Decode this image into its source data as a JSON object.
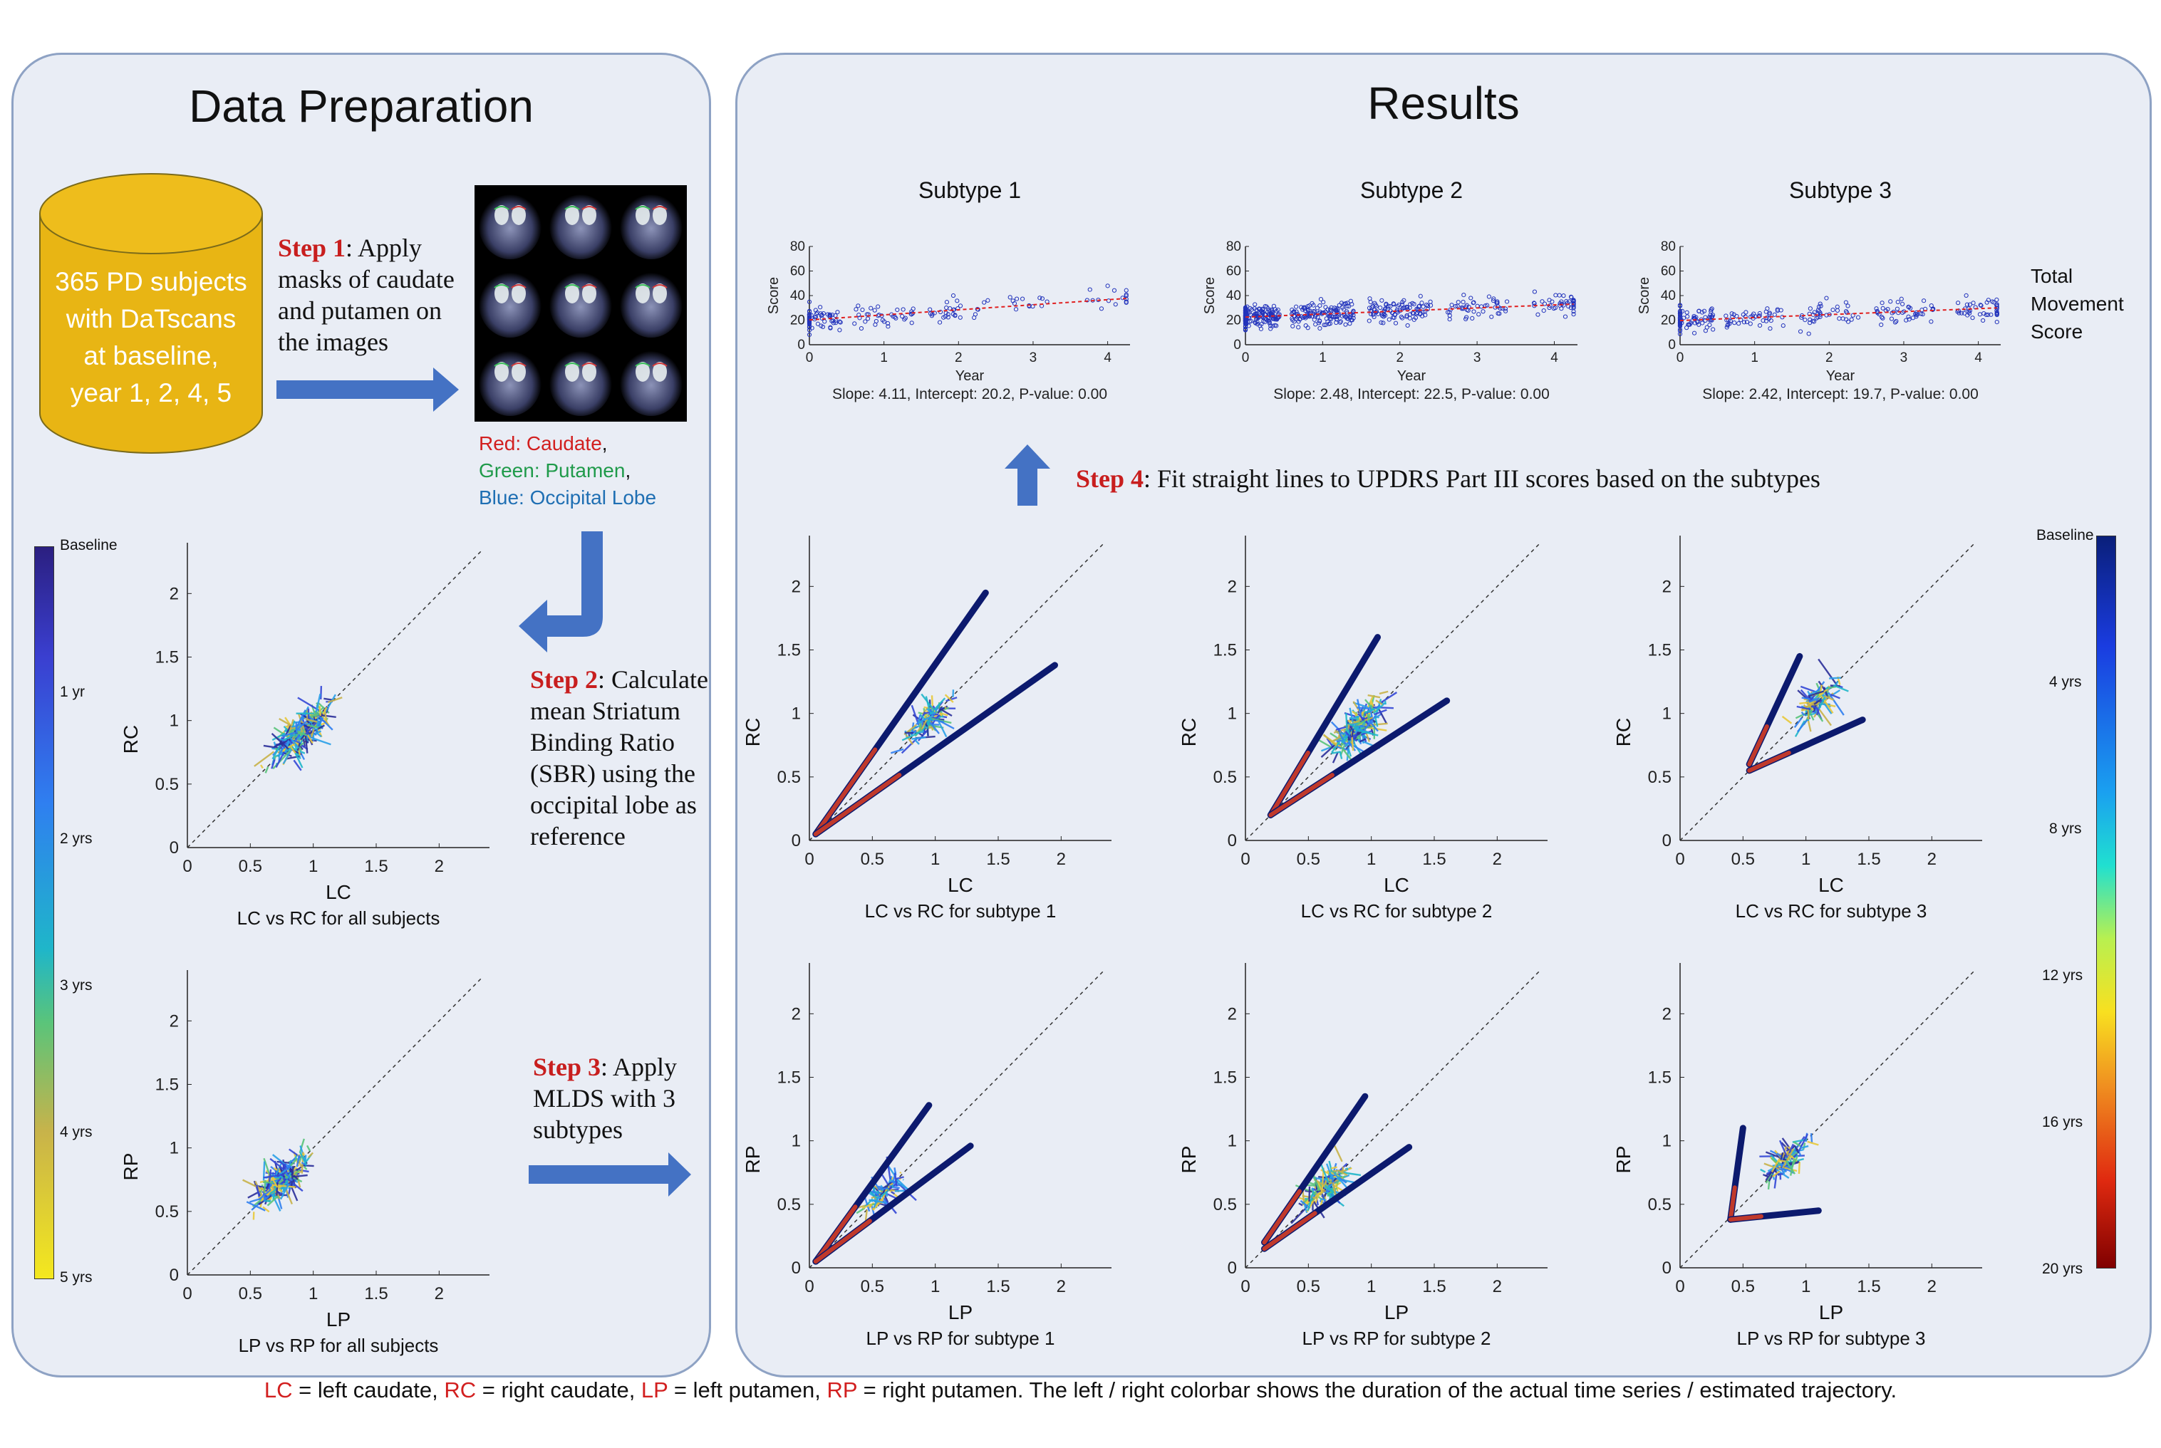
{
  "left_panel": {
    "title": "Data Preparation",
    "database_text": [
      "365 PD subjects",
      "with DaTscans",
      "at baseline,",
      "year 1, 2, 4, 5"
    ],
    "step1": {
      "label": "Step 1",
      "text": ": Apply masks of caudate and putamen on the images"
    },
    "mask_legend": {
      "red": "Red: Caudate",
      "red_suffix": ",",
      "green": "Green: Putamen",
      "green_suffix": ",",
      "blue": "Blue: Occipital Lobe"
    },
    "step2": {
      "label": "Step 2",
      "text": ": Calculate mean Striatum Binding Ratio (SBR) using the occipital lobe as reference"
    },
    "step3": {
      "label": "Step 3",
      "text": ": Apply MLDS with 3 subtypes"
    },
    "colorbar": {
      "labels": [
        "Baseline",
        "1 yr",
        "2 yrs",
        "3 yrs",
        "4 yrs",
        "5 yrs"
      ]
    }
  },
  "right_panel": {
    "title": "Results",
    "step4": {
      "label": "Step 4",
      "text": ": Fit straight lines to UPDRS Part III scores based on the subtypes"
    },
    "score_side_label": [
      "Total",
      "Movement",
      "Score"
    ],
    "colorbar": {
      "labels": [
        "Baseline",
        "4 yrs",
        "8 yrs",
        "12 yrs",
        "16 yrs",
        "20 yrs"
      ]
    }
  },
  "footer": {
    "parts": [
      {
        "t": "LC",
        "red": true
      },
      {
        "t": " = left caudate, ",
        "red": false
      },
      {
        "t": "RC",
        "red": true
      },
      {
        "t": " = right caudate, ",
        "red": false
      },
      {
        "t": "LP",
        "red": true
      },
      {
        "t": " = left putamen, ",
        "red": false
      },
      {
        "t": "RP",
        "red": true
      },
      {
        "t": " = right putamen. The left / right colorbar shows the duration of the actual time series / estimated trajectory.",
        "red": false
      }
    ]
  },
  "chart_data": [
    {
      "id": "score-s1",
      "type": "scatter",
      "title": "Subtype 1",
      "xlabel": "Year",
      "ylabel": "Score",
      "xlim": [
        0,
        4.3
      ],
      "ylim": [
        0,
        80
      ],
      "xticks": [
        0,
        1,
        2,
        3,
        4
      ],
      "yticks": [
        0,
        20,
        40,
        60,
        80
      ],
      "fit": {
        "slope": 4.11,
        "intercept": 20.2
      },
      "caption": "Slope: 4.11, Intercept: 20.2, P-value: 0.00"
    },
    {
      "id": "score-s2",
      "type": "scatter",
      "title": "Subtype 2",
      "xlabel": "Year",
      "ylabel": "Score",
      "xlim": [
        0,
        4.3
      ],
      "ylim": [
        0,
        80
      ],
      "xticks": [
        0,
        1,
        2,
        3,
        4
      ],
      "yticks": [
        0,
        20,
        40,
        60,
        80
      ],
      "fit": {
        "slope": 2.48,
        "intercept": 22.5
      },
      "caption": "Slope: 2.48, Intercept: 22.5, P-value: 0.00"
    },
    {
      "id": "score-s3",
      "type": "scatter",
      "title": "Subtype 3",
      "xlabel": "Year",
      "ylabel": "Score",
      "xlim": [
        0,
        4.3
      ],
      "ylim": [
        0,
        80
      ],
      "xticks": [
        0,
        1,
        2,
        3,
        4
      ],
      "yticks": [
        0,
        20,
        40,
        60,
        80
      ],
      "fit": {
        "slope": 2.42,
        "intercept": 19.7
      },
      "caption": "Slope: 2.42, Intercept: 19.7, P-value: 0.00"
    },
    {
      "id": "traj-all-c",
      "type": "line",
      "xlabel": "LC",
      "ylabel": "RC",
      "caption": "LC vs RC for all subjects",
      "xlim": [
        0,
        2.4
      ],
      "ylim": [
        0,
        2.4
      ],
      "xticks": [
        0,
        0.5,
        1,
        1.5,
        2
      ],
      "yticks": [
        0,
        0.5,
        1,
        1.5,
        2
      ]
    },
    {
      "id": "traj-all-p",
      "type": "line",
      "xlabel": "LP",
      "ylabel": "RP",
      "caption": "LP vs RP for all subjects",
      "xlim": [
        0,
        2.4
      ],
      "ylim": [
        0,
        2.4
      ],
      "xticks": [
        0,
        0.5,
        1,
        1.5,
        2
      ],
      "yticks": [
        0,
        0.5,
        1,
        1.5,
        2
      ]
    },
    {
      "id": "traj-s1-c",
      "type": "line",
      "xlabel": "LC",
      "ylabel": "RC",
      "caption": "LC vs RC for subtype 1",
      "xlim": [
        0,
        2.4
      ],
      "ylim": [
        0,
        2.4
      ],
      "xticks": [
        0,
        0.5,
        1,
        1.5,
        2
      ],
      "yticks": [
        0,
        0.5,
        1,
        1.5,
        2
      ]
    },
    {
      "id": "traj-s2-c",
      "type": "line",
      "xlabel": "LC",
      "ylabel": "RC",
      "caption": "LC vs RC for subtype 2",
      "xlim": [
        0,
        2.4
      ],
      "ylim": [
        0,
        2.4
      ],
      "xticks": [
        0,
        0.5,
        1,
        1.5,
        2
      ],
      "yticks": [
        0,
        0.5,
        1,
        1.5,
        2
      ]
    },
    {
      "id": "traj-s3-c",
      "type": "line",
      "xlabel": "LC",
      "ylabel": "RC",
      "caption": "LC vs RC for subtype 3",
      "xlim": [
        0,
        2.4
      ],
      "ylim": [
        0,
        2.4
      ],
      "xticks": [
        0,
        0.5,
        1,
        1.5,
        2
      ],
      "yticks": [
        0,
        0.5,
        1,
        1.5,
        2
      ]
    },
    {
      "id": "traj-s1-p",
      "type": "line",
      "xlabel": "LP",
      "ylabel": "RP",
      "caption": "LP vs RP for subtype 1",
      "xlim": [
        0,
        2.4
      ],
      "ylim": [
        0,
        2.4
      ],
      "xticks": [
        0,
        0.5,
        1,
        1.5,
        2
      ],
      "yticks": [
        0,
        0.5,
        1,
        1.5,
        2
      ]
    },
    {
      "id": "traj-s2-p",
      "type": "line",
      "xlabel": "LP",
      "ylabel": "RP",
      "caption": "LP vs RP for subtype 2",
      "xlim": [
        0,
        2.4
      ],
      "ylim": [
        0,
        2.4
      ],
      "xticks": [
        0,
        0.5,
        1,
        1.5,
        2
      ],
      "yticks": [
        0,
        0.5,
        1,
        1.5,
        2
      ]
    },
    {
      "id": "traj-s3-p",
      "type": "line",
      "xlabel": "LP",
      "ylabel": "RP",
      "caption": "LP vs RP for subtype 3",
      "xlim": [
        0,
        2.4
      ],
      "ylim": [
        0,
        2.4
      ],
      "xticks": [
        0,
        0.5,
        1,
        1.5,
        2
      ],
      "yticks": [
        0,
        0.5,
        1,
        1.5,
        2
      ]
    }
  ],
  "colors": {
    "panel_bg": "#e9edf5",
    "panel_border": "#8ea2c4",
    "arrow": "#4472c4",
    "database": "#e8b514",
    "step_red": "#c81e1e",
    "mask_red": "#d21f1f",
    "mask_green": "#1f9a4a",
    "mask_blue": "#1f6fb3"
  }
}
